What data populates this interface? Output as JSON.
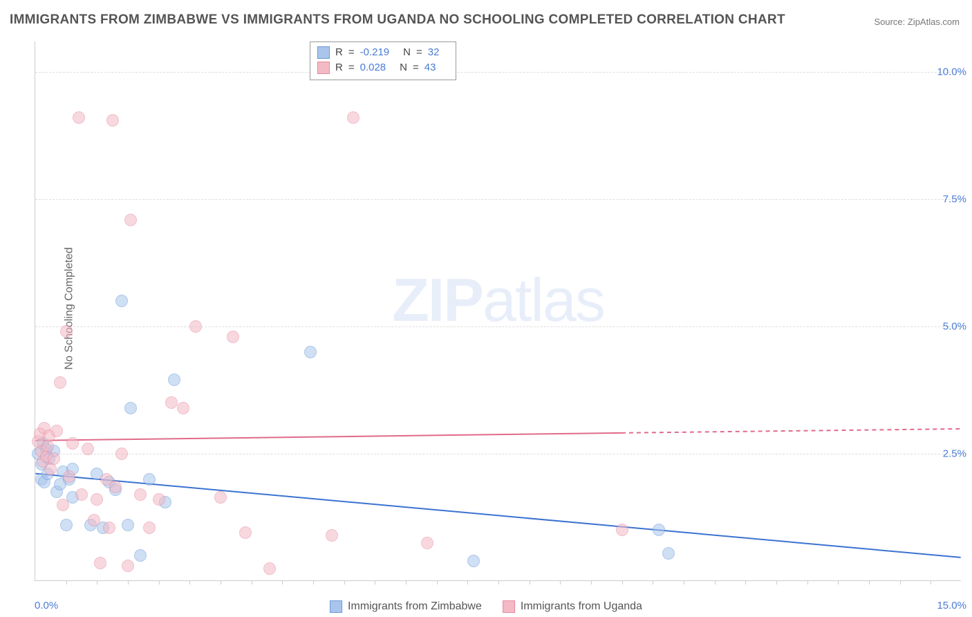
{
  "title": "IMMIGRANTS FROM ZIMBABWE VS IMMIGRANTS FROM UGANDA NO SCHOOLING COMPLETED CORRELATION CHART",
  "source_label": "Source: ",
  "source_name": "ZipAtlas.com",
  "y_axis_label": "No Schooling Completed",
  "watermark_bold": "ZIP",
  "watermark_light": "atlas",
  "chart": {
    "type": "scatter",
    "background_color": "#ffffff",
    "grid_color": "#dddddd",
    "axis_color": "#cccccc",
    "tick_label_color": "#4a7bd6",
    "xlim": [
      0.0,
      15.0
    ],
    "ylim": [
      0.0,
      10.6
    ],
    "y_ticks": [
      2.5,
      5.0,
      7.5,
      10.0
    ],
    "y_tick_labels": [
      "2.5%",
      "5.0%",
      "7.5%",
      "10.0%"
    ],
    "x_tick_left": "0.0%",
    "x_tick_right": "15.0%",
    "x_minor_ticks": [
      0.5,
      1.0,
      1.5,
      2.0,
      2.5,
      3.0,
      3.5,
      4.0,
      4.5,
      5.0,
      5.5,
      6.0,
      6.5,
      7.0,
      7.5,
      8.0,
      8.5,
      9.0,
      9.5,
      10.0,
      10.5,
      11.0,
      11.5,
      12.0,
      12.5,
      13.0,
      13.5,
      14.0,
      14.5
    ],
    "label_fontsize": 15,
    "title_fontsize": 19,
    "marker_radius": 9,
    "marker_opacity": 0.55,
    "line_width": 2
  },
  "series": [
    {
      "name": "Immigrants from Zimbabwe",
      "color_fill": "#a9c5ec",
      "color_stroke": "#6b9ad8",
      "line_color": "#3b72d1",
      "r": "-0.219",
      "n": "32",
      "trend": {
        "x1": 0.0,
        "y1": 2.1,
        "x2": 15.0,
        "y2": 0.45
      },
      "points": [
        [
          0.05,
          2.5
        ],
        [
          0.1,
          2.3
        ],
        [
          0.1,
          2.0
        ],
        [
          0.12,
          2.7
        ],
        [
          0.15,
          1.95
        ],
        [
          0.18,
          2.6
        ],
        [
          0.2,
          2.1
        ],
        [
          0.22,
          2.4
        ],
        [
          0.3,
          2.55
        ],
        [
          0.35,
          1.75
        ],
        [
          0.4,
          1.9
        ],
        [
          0.45,
          2.15
        ],
        [
          0.5,
          1.1
        ],
        [
          0.55,
          2.0
        ],
        [
          0.6,
          1.65
        ],
        [
          0.6,
          2.2
        ],
        [
          0.9,
          1.1
        ],
        [
          1.0,
          2.1
        ],
        [
          1.1,
          1.05
        ],
        [
          1.2,
          1.95
        ],
        [
          1.3,
          1.8
        ],
        [
          1.4,
          5.5
        ],
        [
          1.5,
          1.1
        ],
        [
          1.55,
          3.4
        ],
        [
          1.7,
          0.5
        ],
        [
          1.85,
          2.0
        ],
        [
          2.1,
          1.55
        ],
        [
          2.25,
          3.95
        ],
        [
          4.45,
          4.5
        ],
        [
          7.1,
          0.4
        ],
        [
          10.25,
          0.55
        ],
        [
          10.1,
          1.0
        ]
      ]
    },
    {
      "name": "Immigrants from Uganda",
      "color_fill": "#f3b9c5",
      "color_stroke": "#e68aa0",
      "line_color": "#e06a8a",
      "r": "0.028",
      "n": "43",
      "trend_solid": {
        "x1": 0.0,
        "y1": 2.75,
        "x2": 9.5,
        "y2": 2.9
      },
      "trend_dashed": {
        "x1": 9.5,
        "y1": 2.9,
        "x2": 15.0,
        "y2": 2.98
      },
      "points": [
        [
          0.05,
          2.75
        ],
        [
          0.08,
          2.9
        ],
        [
          0.1,
          2.55
        ],
        [
          0.12,
          2.35
        ],
        [
          0.15,
          3.0
        ],
        [
          0.18,
          2.45
        ],
        [
          0.2,
          2.65
        ],
        [
          0.22,
          2.85
        ],
        [
          0.25,
          2.2
        ],
        [
          0.3,
          2.4
        ],
        [
          0.35,
          2.95
        ],
        [
          0.4,
          3.9
        ],
        [
          0.45,
          1.5
        ],
        [
          0.5,
          4.9
        ],
        [
          0.55,
          2.05
        ],
        [
          0.6,
          2.7
        ],
        [
          0.7,
          9.1
        ],
        [
          0.75,
          1.7
        ],
        [
          0.85,
          2.6
        ],
        [
          0.95,
          1.2
        ],
        [
          1.0,
          1.6
        ],
        [
          1.05,
          0.35
        ],
        [
          1.15,
          2.0
        ],
        [
          1.2,
          1.05
        ],
        [
          1.25,
          9.05
        ],
        [
          1.3,
          1.85
        ],
        [
          1.4,
          2.5
        ],
        [
          1.5,
          0.3
        ],
        [
          1.55,
          7.1
        ],
        [
          1.7,
          1.7
        ],
        [
          1.85,
          1.05
        ],
        [
          2.0,
          1.6
        ],
        [
          2.2,
          3.5
        ],
        [
          2.4,
          3.4
        ],
        [
          2.6,
          5.0
        ],
        [
          3.0,
          1.65
        ],
        [
          3.2,
          4.8
        ],
        [
          3.4,
          0.95
        ],
        [
          3.8,
          0.25
        ],
        [
          4.8,
          0.9
        ],
        [
          5.15,
          9.1
        ],
        [
          6.35,
          0.75
        ],
        [
          9.5,
          1.0
        ]
      ]
    }
  ],
  "legend_bottom": {
    "s1_label": "Immigrants from Zimbabwe",
    "s2_label": "Immigrants from Uganda"
  },
  "legend_top": {
    "r_label": "R",
    "n_label": "N",
    "eq": " = "
  }
}
